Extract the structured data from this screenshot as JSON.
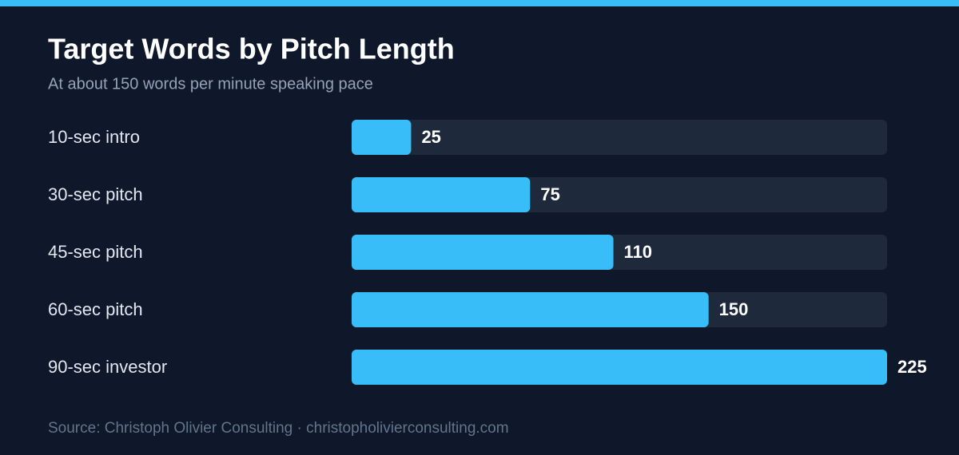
{
  "chart_data": {
    "type": "hbar",
    "title": "Target Words by Pitch Length",
    "subtitle": "At about 150 words per minute speaking pace",
    "categories": [
      "10-sec intro",
      "30-sec pitch",
      "45-sec pitch",
      "60-sec pitch",
      "90-sec investor"
    ],
    "values": [
      25,
      75,
      110,
      150,
      225
    ],
    "color": "#38bdf8",
    "xlim": [
      0,
      225
    ],
    "source": "Source: Christoph Olivier Consulting · christopholivierconsulting.com"
  }
}
